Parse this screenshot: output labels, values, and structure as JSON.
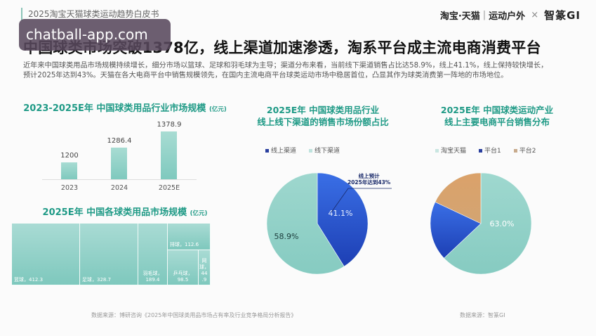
{
  "header": {
    "doc_title": "2025淘宝天猫球类运动趋势白皮书",
    "watermark": "chatball-app.com",
    "brand": {
      "taobao_tmall": "淘宝·天猫",
      "separator": "|",
      "category": "运动户外",
      "times": "×",
      "partner": "智篆GI"
    }
  },
  "main": {
    "title": "中国球类市场突破1378亿，线上渠道加速渗透，淘系平台成主流电商消费平台",
    "intro_line1": "近年来中国球类用品市场规模持续增长，细分市场以篮球、足球和羽毛球为主导；渠道分布来看，当前线下渠道销售占比达58.9%，线上41.1%，线上保持较快增长，",
    "intro_line2": "预计2025年达到43%。天猫在各大电商平台中销售规模领先，在国内主流电商平台球类运动市场中稳居首位，凸显其作为球类消费第一阵地的市场地位。"
  },
  "colors": {
    "accent_green": "#1f9a86",
    "teal": "#8fd0c6",
    "blue": "#2f5fd6",
    "orange": "#d9a46b"
  },
  "chart_data": [
    {
      "type": "bar",
      "title": "2023-2025E年 中国球类用品行业市场规模",
      "unit": "(亿元)",
      "categories": [
        "2023",
        "2024",
        "2025E"
      ],
      "values": [
        1200,
        1286.4,
        1378.9
      ],
      "value_labels": [
        "1200",
        "1286.4",
        "1378.9"
      ],
      "xlabel": "",
      "ylabel": "",
      "grid": false
    },
    {
      "type": "treemap",
      "title": "2025E年 中国各球类用品市场规模",
      "unit": "(亿元)",
      "items": [
        {
          "name": "篮球",
          "value": 412.3,
          "label": "篮球，412.3"
        },
        {
          "name": "足球",
          "value": 328.7,
          "label": "足球，328.7"
        },
        {
          "name": "羽毛球",
          "value": 189.4,
          "label": "羽毛球，\n189.4"
        },
        {
          "name": "排球",
          "value": 112.6,
          "label": "排球，112.6"
        },
        {
          "name": "乒乓球",
          "value": 98.5,
          "label": "乒乓球，\n98.5"
        },
        {
          "name": "网球",
          "value": 44.9,
          "label": "网\n球，\n44\n.9"
        }
      ]
    },
    {
      "type": "pie",
      "title_line1": "2025E年 中国球类用品行业",
      "title_line2": "线上线下渠道的销售市场份额占比",
      "legend": [
        "线上渠道",
        "线下渠道"
      ],
      "slices": [
        {
          "name": "线上渠道",
          "value": 41.1,
          "label": "41.1%",
          "color": "#2f5fd6"
        },
        {
          "name": "线下渠道",
          "value": 58.9,
          "label": "58.9%",
          "color": "#8fd0c6"
        }
      ],
      "annotation_line1": "线上预计",
      "annotation_line2": "2025年达到43%",
      "source": "数据来源：博研咨询《2025年中国球类用品市场占有率及行业竞争格局分析报告》"
    },
    {
      "type": "pie",
      "title_line1": "2025E年 中国球类运动产业",
      "title_line2": "线上主要电商平台销售分布",
      "legend": [
        "淘宝天猫",
        "平台1",
        "平台2"
      ],
      "slices": [
        {
          "name": "淘宝天猫",
          "value": 63.0,
          "label": "63.0%",
          "color": "#8fd0c6"
        },
        {
          "name": "平台1",
          "value": 19.0,
          "label": "",
          "color": "#2f5fd6"
        },
        {
          "name": "平台2",
          "value": 18.0,
          "label": "",
          "color": "#d9a46b"
        }
      ],
      "source": "数据来源：智篆GI"
    }
  ]
}
